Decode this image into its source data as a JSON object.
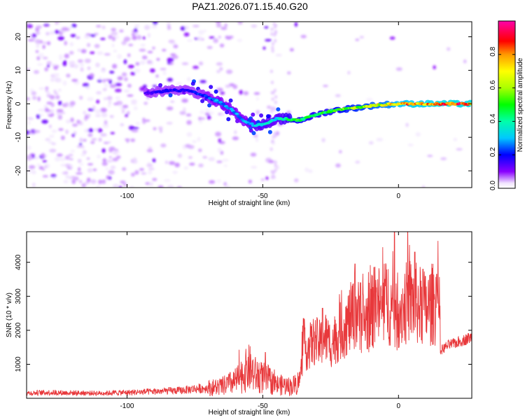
{
  "title": "PAZ1.2026.071.15.40.G20",
  "chart_data": [
    {
      "type": "heatmap",
      "name": "spectrogram",
      "xlabel": "Height of straight line (km)",
      "ylabel": "Frequency (Hz)",
      "xlim": [
        -137,
        27
      ],
      "ylim": [
        -25,
        24.5
      ],
      "xticks": [
        {
          "value": -100,
          "label": "-100"
        },
        {
          "value": -50,
          "label": "-50"
        },
        {
          "value": 0,
          "label": "0"
        }
      ],
      "yticks": [
        {
          "value": 20,
          "label": "20"
        },
        {
          "value": 10,
          "label": "10"
        },
        {
          "value": 0,
          "label": "0"
        },
        {
          "value": -10,
          "label": "-10"
        },
        {
          "value": -20,
          "label": "-20"
        }
      ],
      "colorbar": {
        "label": "Normalized spectral amplitude",
        "range": [
          0,
          1
        ],
        "ticks": [
          {
            "value": 0,
            "label": "0.0"
          },
          {
            "value": 0.2,
            "label": "0.2"
          },
          {
            "value": 0.4,
            "label": "0.4"
          },
          {
            "value": 0.6,
            "label": "0.6"
          },
          {
            "value": 0.8,
            "label": "0.8"
          }
        ]
      },
      "ridge": {
        "x": [
          -93,
          -85,
          -78,
          -72,
          -66,
          -61,
          -57,
          -53,
          -49,
          -45,
          -41,
          -37,
          -33,
          -29,
          -24,
          -19,
          -14,
          -9,
          -4,
          0,
          5,
          10,
          15,
          20,
          27
        ],
        "frequency": [
          3,
          4,
          4,
          2.5,
          0.5,
          -2,
          -5,
          -6.5,
          -6,
          -4.5,
          -4.5,
          -5,
          -4,
          -3,
          -2,
          -1.5,
          -1,
          -0.5,
          -0.2,
          0,
          0,
          0,
          0,
          0,
          0
        ],
        "amplitude": [
          0.15,
          0.2,
          0.2,
          0.25,
          0.3,
          0.3,
          0.3,
          0.35,
          0.4,
          0.35,
          0.45,
          0.55,
          0.5,
          0.5,
          0.55,
          0.6,
          0.65,
          0.7,
          0.75,
          0.85,
          0.9,
          0.9,
          0.95,
          0.95,
          0.95
        ]
      }
    },
    {
      "type": "line",
      "name": "snr",
      "xlabel": "Height of straight line (km)",
      "ylabel": "SNR (10 * v/v)",
      "xlim": [
        -137,
        27
      ],
      "ylim": [
        0,
        4900
      ],
      "xticks": [
        {
          "value": -100,
          "label": "-100"
        },
        {
          "value": -50,
          "label": "-50"
        },
        {
          "value": 0,
          "label": "0"
        }
      ],
      "yticks": [
        {
          "value": 1000,
          "label": "1000"
        },
        {
          "value": 2000,
          "label": "2000"
        },
        {
          "value": 3000,
          "label": "3000"
        },
        {
          "value": 4000,
          "label": "4000"
        }
      ],
      "series": [
        {
          "name": "SNR",
          "color": "#e8383b",
          "x": [
            -137,
            -130,
            -120,
            -110,
            -100,
            -90,
            -80,
            -75,
            -70,
            -65,
            -60,
            -57,
            -55,
            -53,
            -50,
            -48,
            -45,
            -42,
            -40,
            -38,
            -36.5,
            -35,
            -33,
            -31,
            -29,
            -28,
            -27,
            -25,
            -22,
            -20,
            -18,
            -16,
            -15,
            -14,
            -12,
            -10,
            -8,
            -6,
            -4,
            -2,
            -1,
            0,
            2,
            4,
            6,
            8,
            10,
            12,
            14,
            15,
            15.5,
            18,
            22,
            27
          ],
          "y": [
            150,
            170,
            160,
            150,
            170,
            200,
            230,
            280,
            300,
            350,
            500,
            750,
            900,
            700,
            600,
            550,
            400,
            380,
            350,
            400,
            500,
            1400,
            1500,
            1700,
            1600,
            1700,
            1800,
            1600,
            1900,
            2100,
            2300,
            2600,
            2500,
            2200,
            2300,
            2500,
            2800,
            2600,
            2900,
            2500,
            2300,
            2600,
            2700,
            2900,
            2800,
            2700,
            2600,
            2750,
            2800,
            2700,
            1400,
            1550,
            1650,
            1800
          ]
        }
      ],
      "peaks": [
        {
          "x": -49,
          "y": 1350
        },
        {
          "x": -35,
          "y": 2350
        },
        {
          "x": -28,
          "y": 2650
        },
        {
          "x": -16,
          "y": 3950
        },
        {
          "x": -14,
          "y": 3400
        },
        {
          "x": -9,
          "y": 3850
        },
        {
          "x": -5,
          "y": 3500
        },
        {
          "x": -1.5,
          "y": 4950
        },
        {
          "x": 3,
          "y": 3400
        },
        {
          "x": 6,
          "y": 4300
        },
        {
          "x": 9,
          "y": 3800
        },
        {
          "x": 14,
          "y": 3650
        }
      ]
    }
  ]
}
